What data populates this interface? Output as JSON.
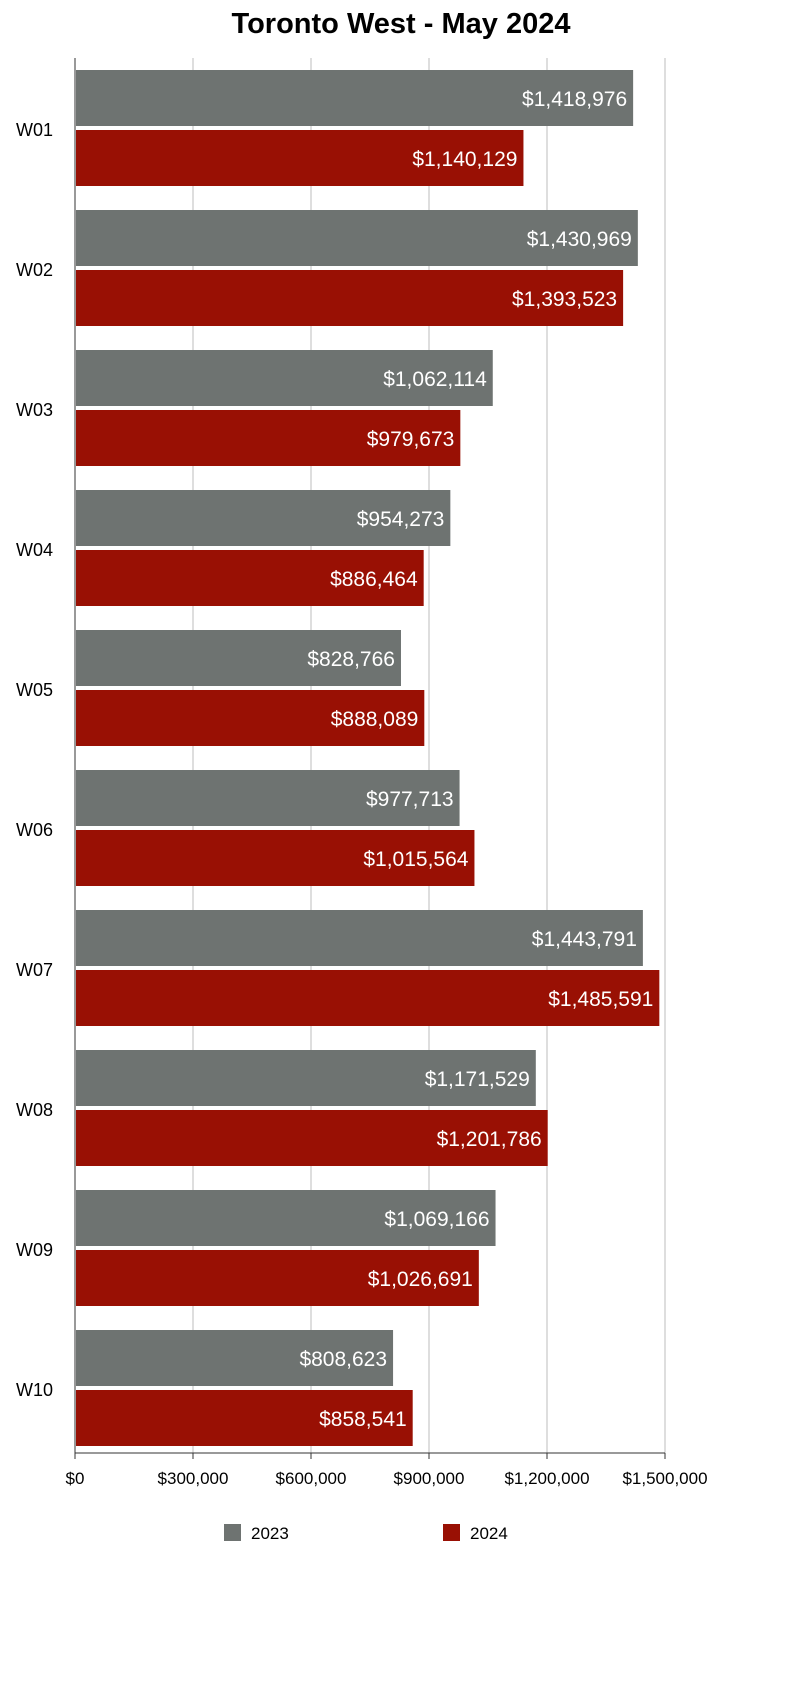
{
  "chart_data": {
    "type": "bar",
    "orientation": "horizontal",
    "title": "Toronto West - May 2024",
    "xlabel": "",
    "ylabel": "",
    "categories": [
      "W01",
      "W02",
      "W03",
      "W04",
      "W05",
      "W06",
      "W07",
      "W08",
      "W09",
      "W10"
    ],
    "series": [
      {
        "name": "2023",
        "color": "#6e7371",
        "values": [
          1418976,
          1430969,
          1062114,
          954273,
          828766,
          977713,
          1443791,
          1171529,
          1069166,
          808623
        ],
        "labels": [
          "$1,418,976",
          "$1,430,969",
          "$1,062,114",
          "$954,273",
          "$828,766",
          "$977,713",
          "$1,443,791",
          "$1,171,529",
          "$1,069,166",
          "$808,623"
        ]
      },
      {
        "name": "2024",
        "color": "#991004",
        "values": [
          1140129,
          1393523,
          979673,
          886464,
          888089,
          1015564,
          1485591,
          1201786,
          1026691,
          858541
        ],
        "labels": [
          "$1,140,129",
          "$1,393,523",
          "$979,673",
          "$886,464",
          "$888,089",
          "$1,015,564",
          "$1,485,591",
          "$1,201,786",
          "$1,026,691",
          "$858,541"
        ]
      }
    ],
    "xlim": [
      0,
      1500000
    ],
    "ticks": [
      0,
      300000,
      600000,
      900000,
      1200000,
      1500000
    ],
    "tick_labels": [
      "$0",
      "$300,000",
      "$600,000",
      "$900,000",
      "$1,200,000",
      "$1,500,000"
    ],
    "grid": true,
    "legend": "bottom"
  }
}
